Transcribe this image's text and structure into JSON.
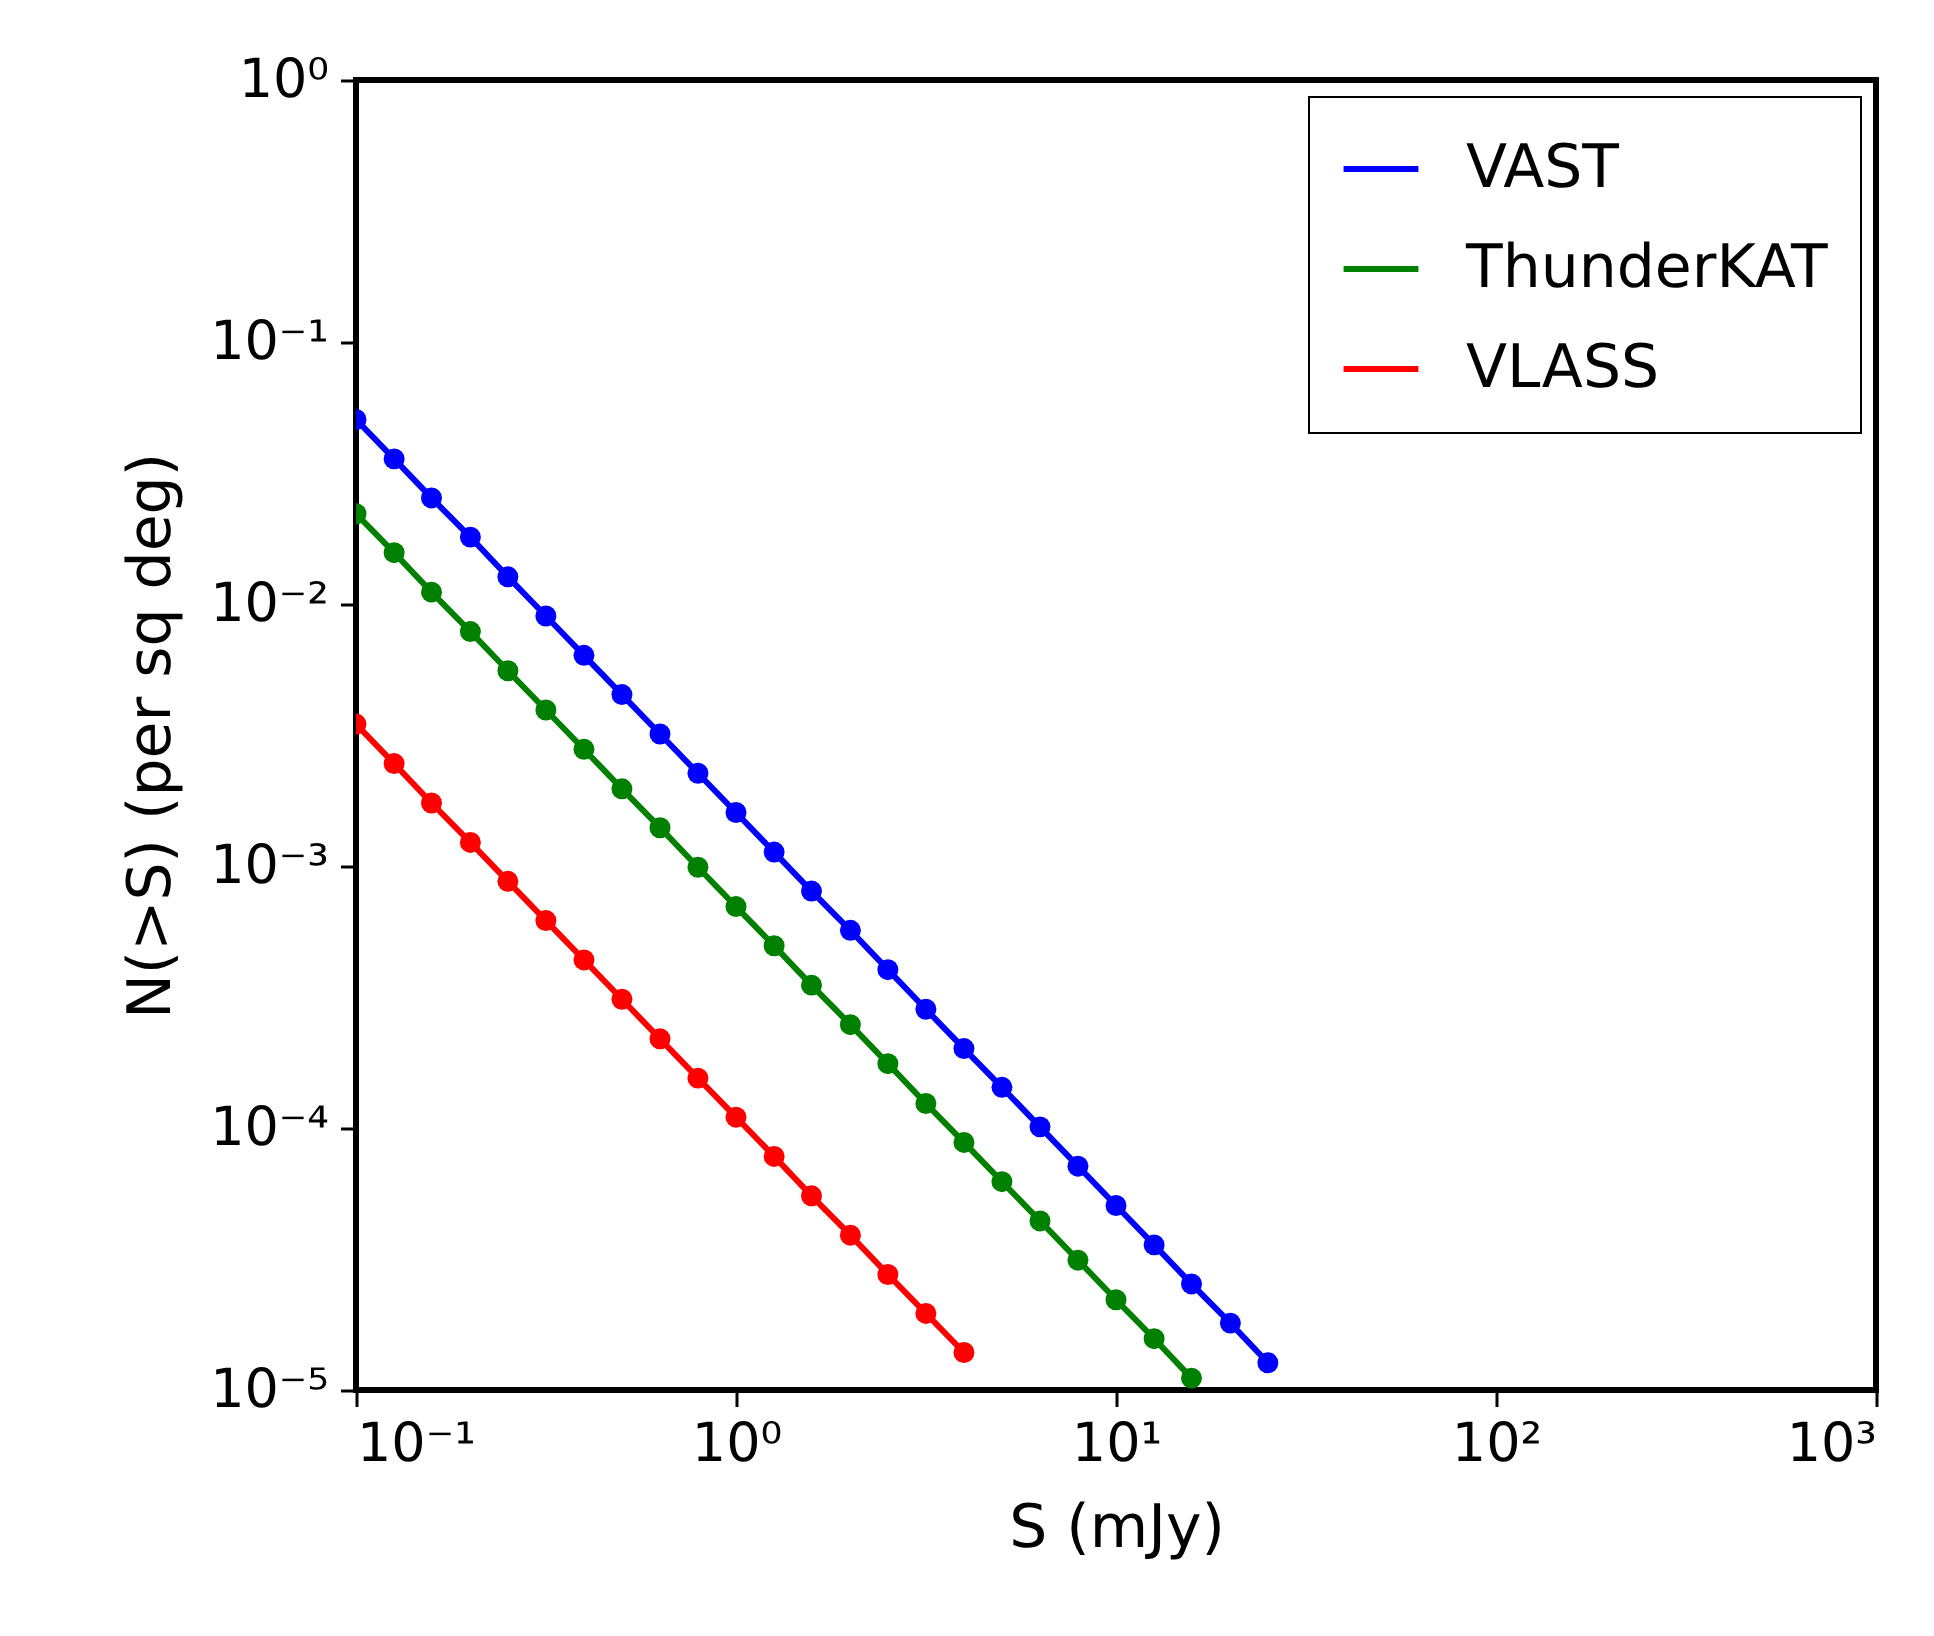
{
  "chart_data": {
    "type": "line",
    "xlabel": "S (mJy)",
    "ylabel": "N(>S) (per sq deg)",
    "log": "xy",
    "grid": false,
    "legend": "top right",
    "marker": "circle",
    "line_style": "solid",
    "xlim": [
      0.1,
      1000
    ],
    "ylim": [
      1e-05,
      1
    ],
    "xticks": [
      {
        "value": 0.1,
        "label": "10⁻¹"
      },
      {
        "value": 1,
        "label": "10⁰"
      },
      {
        "value": 10,
        "label": "10¹"
      },
      {
        "value": 100,
        "label": "10²"
      },
      {
        "value": 1000,
        "label": "10³"
      }
    ],
    "yticks": [
      {
        "value": 1e-05,
        "label": "10⁻⁵"
      },
      {
        "value": 0.0001,
        "label": "10⁻⁴"
      },
      {
        "value": 0.001,
        "label": "10⁻³"
      },
      {
        "value": 0.01,
        "label": "10⁻²"
      },
      {
        "value": 0.1,
        "label": "10⁻¹"
      },
      {
        "value": 1,
        "label": "10⁰"
      }
    ],
    "series": [
      {
        "name": "VAST",
        "color": "#0000ff",
        "x": [
          0.1,
          0.126,
          0.158,
          0.2,
          0.251,
          0.316,
          0.398,
          0.501,
          0.631,
          0.794,
          1,
          1.26,
          1.58,
          2,
          2.51,
          3.16,
          3.98,
          5.01,
          6.31,
          7.94,
          10,
          12.6,
          15.8,
          20,
          25.1
        ],
        "values": [
          0.0506,
          0.0358,
          0.0254,
          0.018,
          0.0127,
          0.009,
          0.00637,
          0.00451,
          0.00319,
          0.00226,
          0.0016,
          0.00113,
          0.000802,
          0.000568,
          0.000402,
          0.000284,
          0.000201,
          0.000143,
          0.000101,
          7.15e-05,
          5.06e-05,
          3.58e-05,
          2.54e-05,
          1.8e-05,
          1.27e-05
        ]
      },
      {
        "name": "ThunderKAT",
        "color": "#008000",
        "x": [
          0.1,
          0.126,
          0.158,
          0.2,
          0.251,
          0.316,
          0.398,
          0.501,
          0.631,
          0.794,
          1,
          1.26,
          1.58,
          2,
          2.51,
          3.16,
          3.98,
          5.01,
          6.31,
          7.94,
          10,
          12.6,
          15.8
        ],
        "values": [
          0.0221,
          0.0157,
          0.0111,
          0.00785,
          0.00556,
          0.00394,
          0.00279,
          0.00197,
          0.0014,
          0.000989,
          0.0007,
          0.000496,
          0.000351,
          0.000248,
          0.000176,
          0.000124,
          8.81e-05,
          6.24e-05,
          4.42e-05,
          3.13e-05,
          2.21e-05,
          1.57e-05,
          1.11e-05
        ]
      },
      {
        "name": "VLASS",
        "color": "#ff0000",
        "x": [
          0.1,
          0.126,
          0.158,
          0.2,
          0.251,
          0.316,
          0.398,
          0.501,
          0.631,
          0.794,
          1,
          1.26,
          1.58,
          2,
          2.51,
          3.16,
          3.98
        ],
        "values": [
          0.00348,
          0.00246,
          0.00174,
          0.00123,
          0.000874,
          0.000619,
          0.000438,
          0.00031,
          0.000219,
          0.000155,
          0.00011,
          7.79e-05,
          5.51e-05,
          3.9e-05,
          2.76e-05,
          1.96e-05,
          1.39e-05
        ]
      }
    ]
  }
}
